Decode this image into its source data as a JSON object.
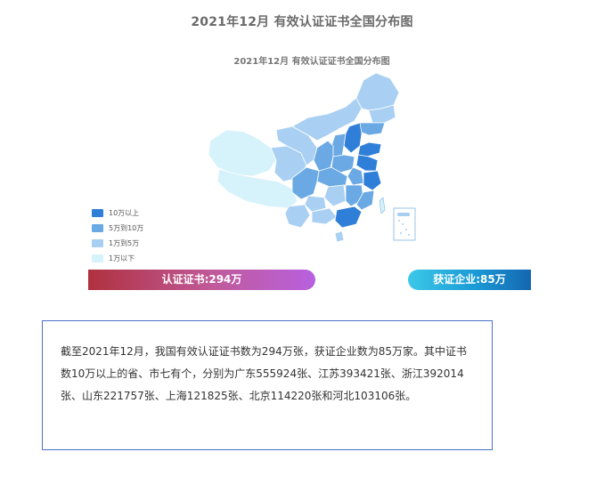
{
  "page_title": "2021年12月 有效认证证书全国分布图",
  "map_title": "2021年12月  有效认证证书全国分布图",
  "legend": [
    {
      "label": "10万以上",
      "color": "#2f7fd8"
    },
    {
      "label": "5万到10万",
      "color": "#6aa9e3"
    },
    {
      "label": "1万到5万",
      "color": "#a9d0f2"
    },
    {
      "label": "1万以下",
      "color": "#d6f2fb"
    }
  ],
  "stats": {
    "certificates": "认证证书:294万",
    "companies": "获证企业:85万"
  },
  "summary": "截至2021年12月，我国有效认证证书数为294万张，获证企业数为85万家。其中证书数10万以上的省、市七有个，分别为广东555924张、江苏393421张、浙江392014张、山东221757张、上海121825张、北京114220张和河北103106张。",
  "colors": {
    "tier_10w_plus": "#2f7fd8",
    "tier_5w_10w": "#6aa9e3",
    "tier_1w_5w": "#a9d0f2",
    "tier_below_1w": "#d6f2fb",
    "summary_border": "#4a72c4"
  }
}
